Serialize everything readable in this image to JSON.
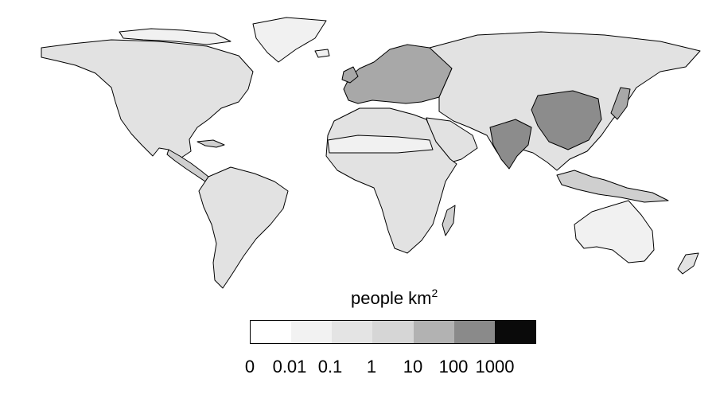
{
  "legend": {
    "title": "people km",
    "title_superscript": "2",
    "ticks": [
      "0",
      "0.01",
      "0.1",
      "1",
      "10",
      "100",
      "1000"
    ],
    "colors": [
      "#ffffff",
      "#f2f2f2",
      "#e4e4e4",
      "#d6d6d6",
      "#b2b2b2",
      "#8a8a8a",
      "#0a0a0a"
    ]
  },
  "map": {
    "ocean_color": "#ffffff",
    "outline_color": "#000000",
    "region_shades": {
      "sparse": "#f1f1f1",
      "low": "#e2e2e2",
      "medium": "#cfcfcf",
      "dense": "#a8a8a8",
      "very_dense": "#8c8c8c"
    }
  }
}
